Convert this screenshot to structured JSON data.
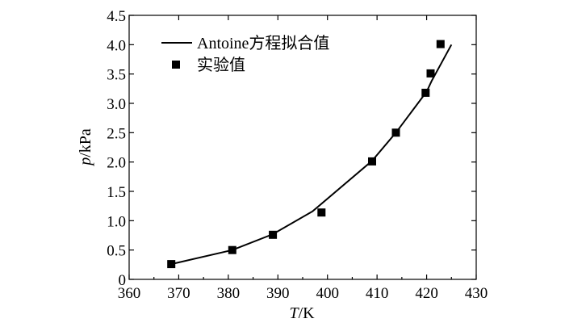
{
  "chart_data": {
    "type": "scatter",
    "title": "",
    "xlabel_italic": "T",
    "xlabel_unit": "/K",
    "ylabel_italic": "p",
    "ylabel_unit": "/kPa",
    "xlim": [
      360,
      430
    ],
    "ylim": [
      0,
      4.5
    ],
    "xticks": [
      360,
      370,
      380,
      390,
      400,
      410,
      420,
      430
    ],
    "yticks": [
      0,
      0.5,
      1.0,
      1.5,
      2.0,
      2.5,
      3.0,
      3.5,
      4.0,
      4.5
    ],
    "xtick_labels": [
      "360",
      "370",
      "380",
      "390",
      "400",
      "410",
      "420",
      "430"
    ],
    "ytick_labels": [
      "0",
      "0.5",
      "1.0",
      "1.5",
      "2.0",
      "2.5",
      "3.0",
      "3.5",
      "4.0",
      "4.5"
    ],
    "grid": false,
    "legend_position": "top-left",
    "series": [
      {
        "name": "Antoine方程拟合值",
        "kind": "line",
        "x": [
          368.5,
          380.8,
          389.0,
          397.0,
          409.0,
          413.8,
          420.0,
          421.0,
          425.0
        ],
        "y": [
          0.26,
          0.5,
          0.77,
          1.16,
          2.02,
          2.5,
          3.2,
          3.38,
          4.0
        ]
      },
      {
        "name": "实验值",
        "kind": "marker",
        "x": [
          368.5,
          380.8,
          389.0,
          398.8,
          409.0,
          413.8,
          419.8,
          420.8,
          422.8
        ],
        "y": [
          0.26,
          0.5,
          0.76,
          1.14,
          2.01,
          2.5,
          3.18,
          3.51,
          4.01
        ]
      }
    ]
  }
}
